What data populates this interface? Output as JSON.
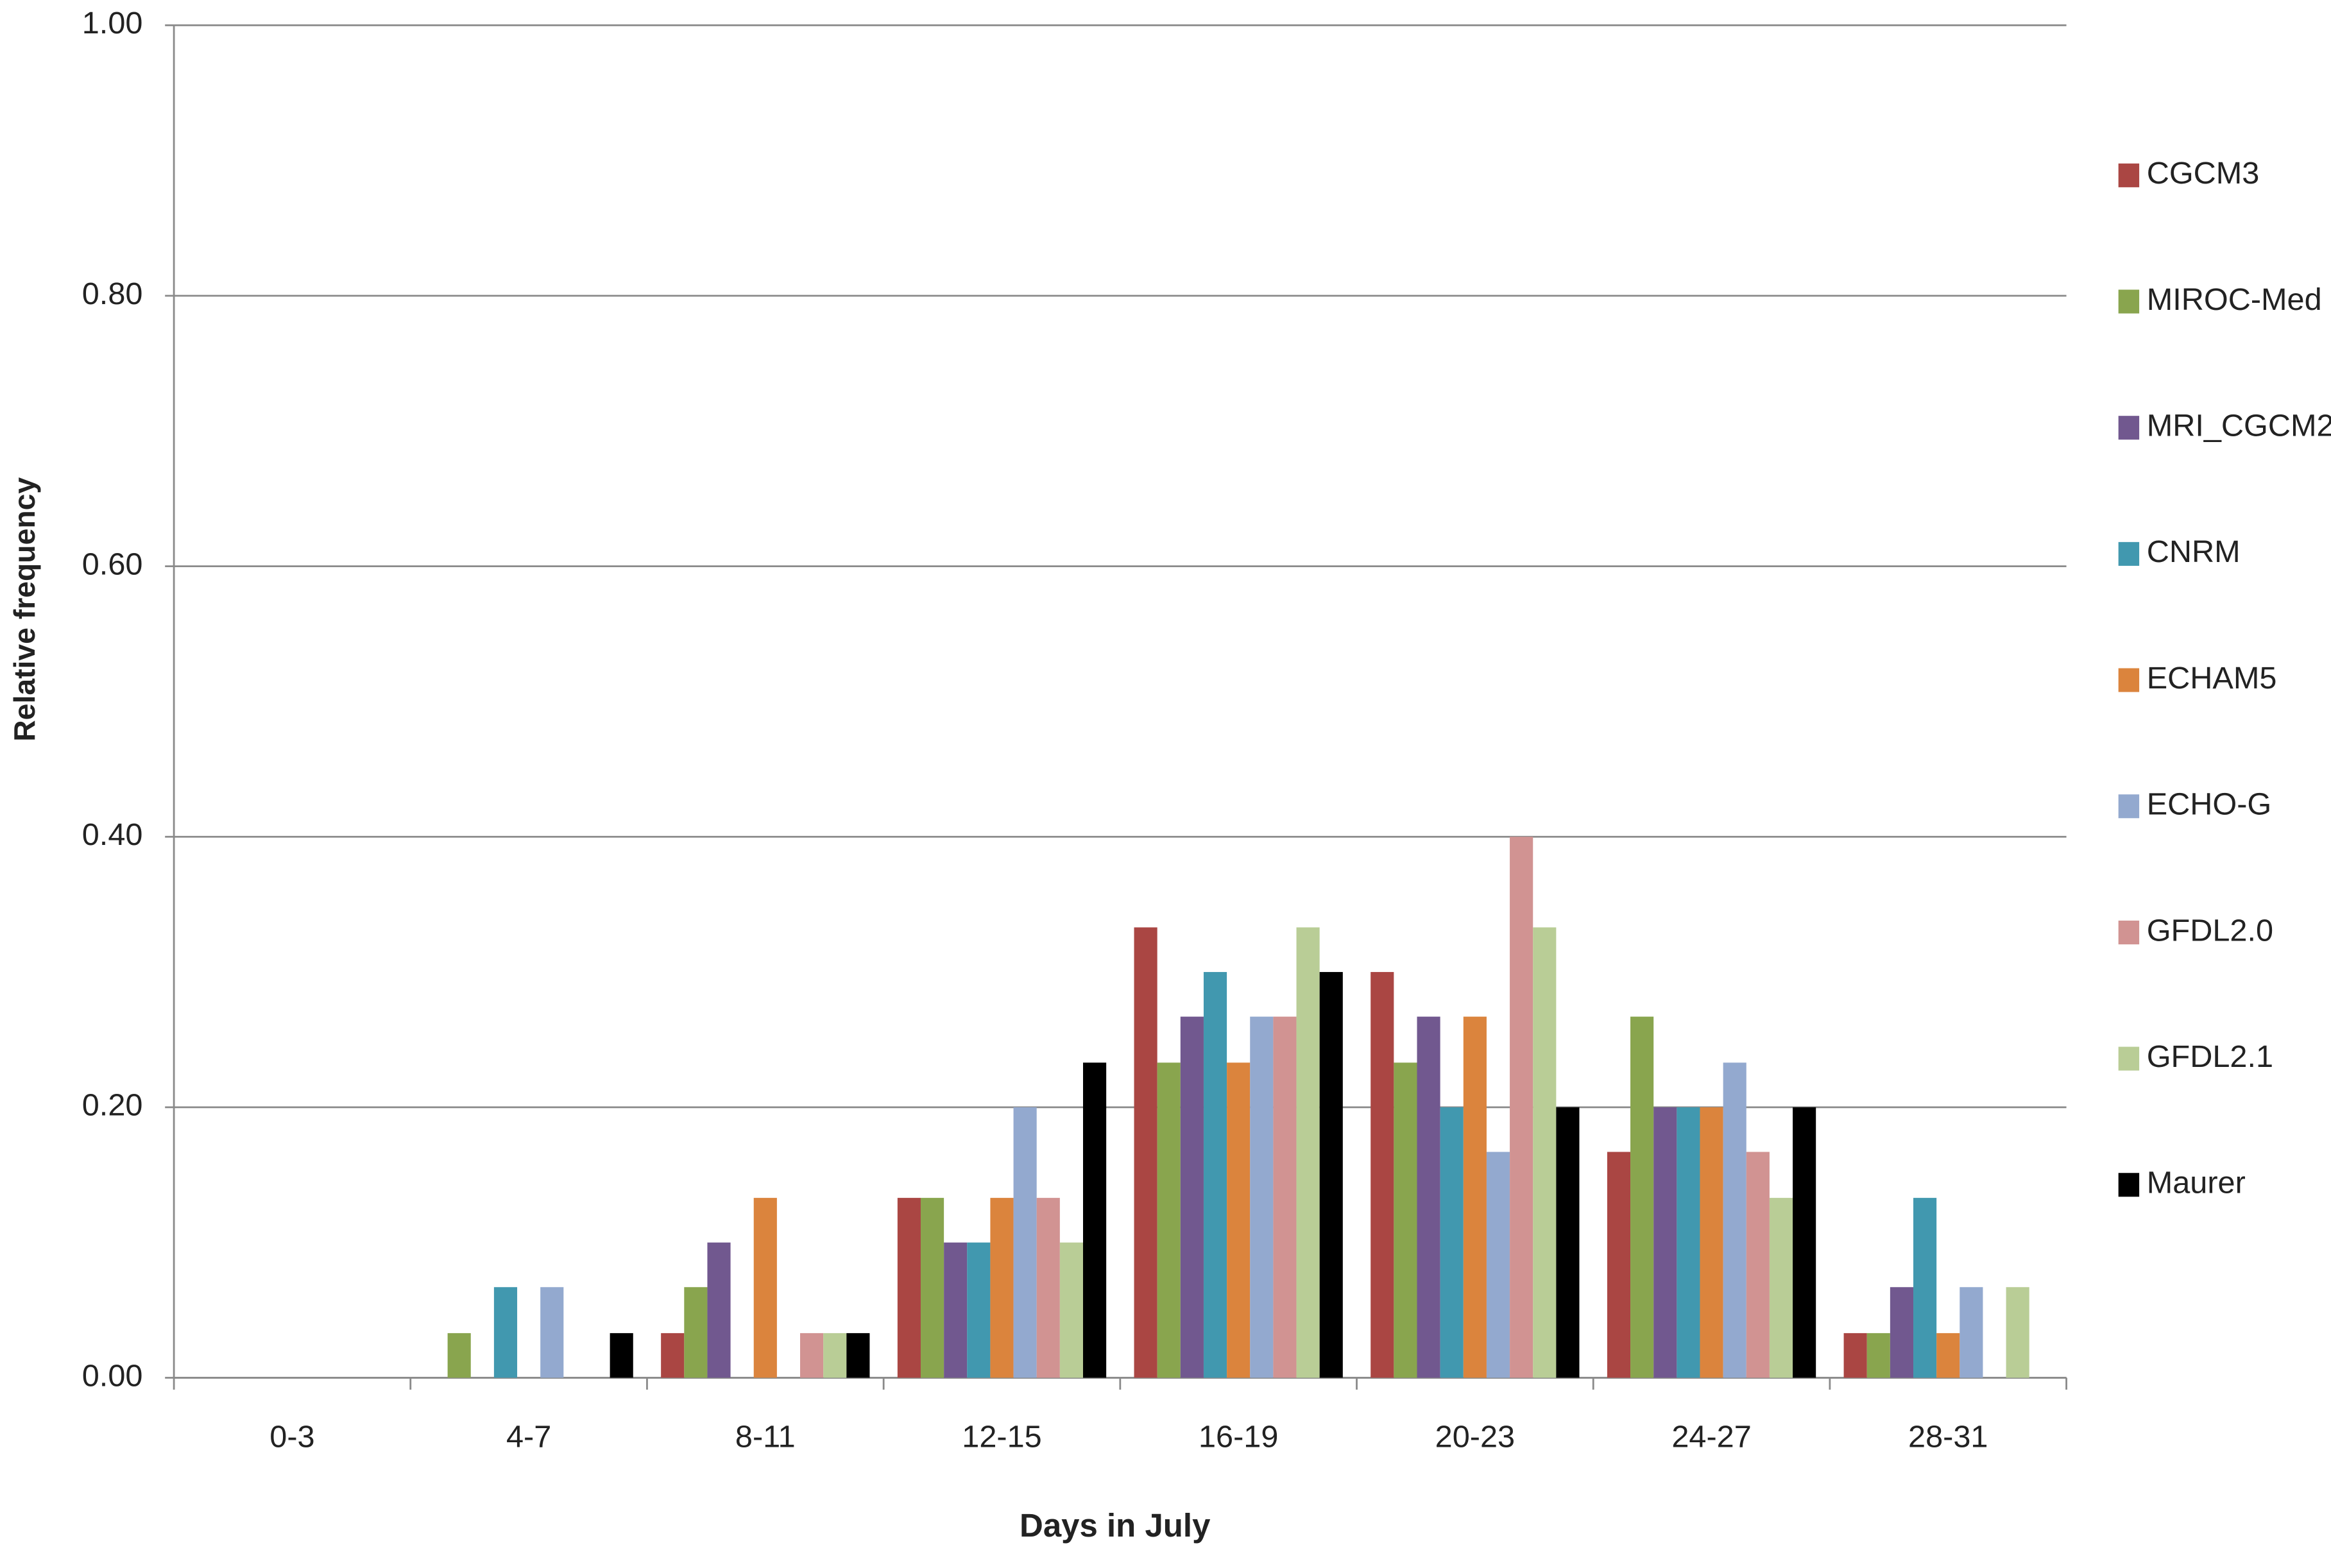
{
  "chart_data": {
    "type": "bar",
    "x_label": "Days in July",
    "y_label": "Relative frequency",
    "categories": [
      "0-3",
      "4-7",
      "8-11",
      "12-15",
      "16-19",
      "20-23",
      "24-27",
      "28-31"
    ],
    "series": [
      {
        "name": "CGCM3",
        "color": "#aa4643",
        "values": [
          0,
          0,
          0.033,
          0.133,
          0.333,
          0.3,
          0.167,
          0.033
        ]
      },
      {
        "name": "MIROC-Med",
        "color": "#89a54e",
        "values": [
          0,
          0.033,
          0.067,
          0.133,
          0.233,
          0.233,
          0.267,
          0.033
        ]
      },
      {
        "name": "MRI_CGCM2",
        "color": "#71588f",
        "values": [
          0,
          0,
          0.1,
          0.1,
          0.267,
          0.267,
          0.2,
          0.067
        ]
      },
      {
        "name": "CNRM",
        "color": "#4198af",
        "values": [
          0,
          0.067,
          0,
          0.1,
          0.3,
          0.2,
          0.2,
          0.133
        ]
      },
      {
        "name": "ECHAM5",
        "color": "#db843d",
        "values": [
          0,
          0,
          0.133,
          0.133,
          0.233,
          0.267,
          0.2,
          0.033
        ]
      },
      {
        "name": "ECHO-G",
        "color": "#93a9cf",
        "values": [
          0,
          0.067,
          0,
          0.2,
          0.267,
          0.167,
          0.233,
          0.067
        ]
      },
      {
        "name": "GFDL2.0",
        "color": "#d19392",
        "values": [
          0,
          0,
          0.033,
          0.133,
          0.267,
          0.4,
          0.167,
          0
        ]
      },
      {
        "name": "GFDL2.1",
        "color": "#b9cd96",
        "values": [
          0,
          0,
          0.033,
          0.1,
          0.333,
          0.333,
          0.133,
          0.067
        ]
      },
      {
        "name": "Maurer",
        "color": "#000000",
        "values": [
          0,
          0.033,
          0.033,
          0.233,
          0.3,
          0.2,
          0.2,
          0
        ]
      }
    ],
    "ylim": [
      0,
      1
    ],
    "yticks": [
      {
        "value": 0,
        "label": "0.00"
      },
      {
        "value": 0.2,
        "label": "0.20"
      },
      {
        "value": 0.4,
        "label": "0.40"
      },
      {
        "value": 0.6,
        "label": "0.60"
      },
      {
        "value": 0.8,
        "label": "0.80"
      },
      {
        "value": 1,
        "label": "1.00"
      }
    ],
    "grid": true,
    "legend": "right"
  }
}
